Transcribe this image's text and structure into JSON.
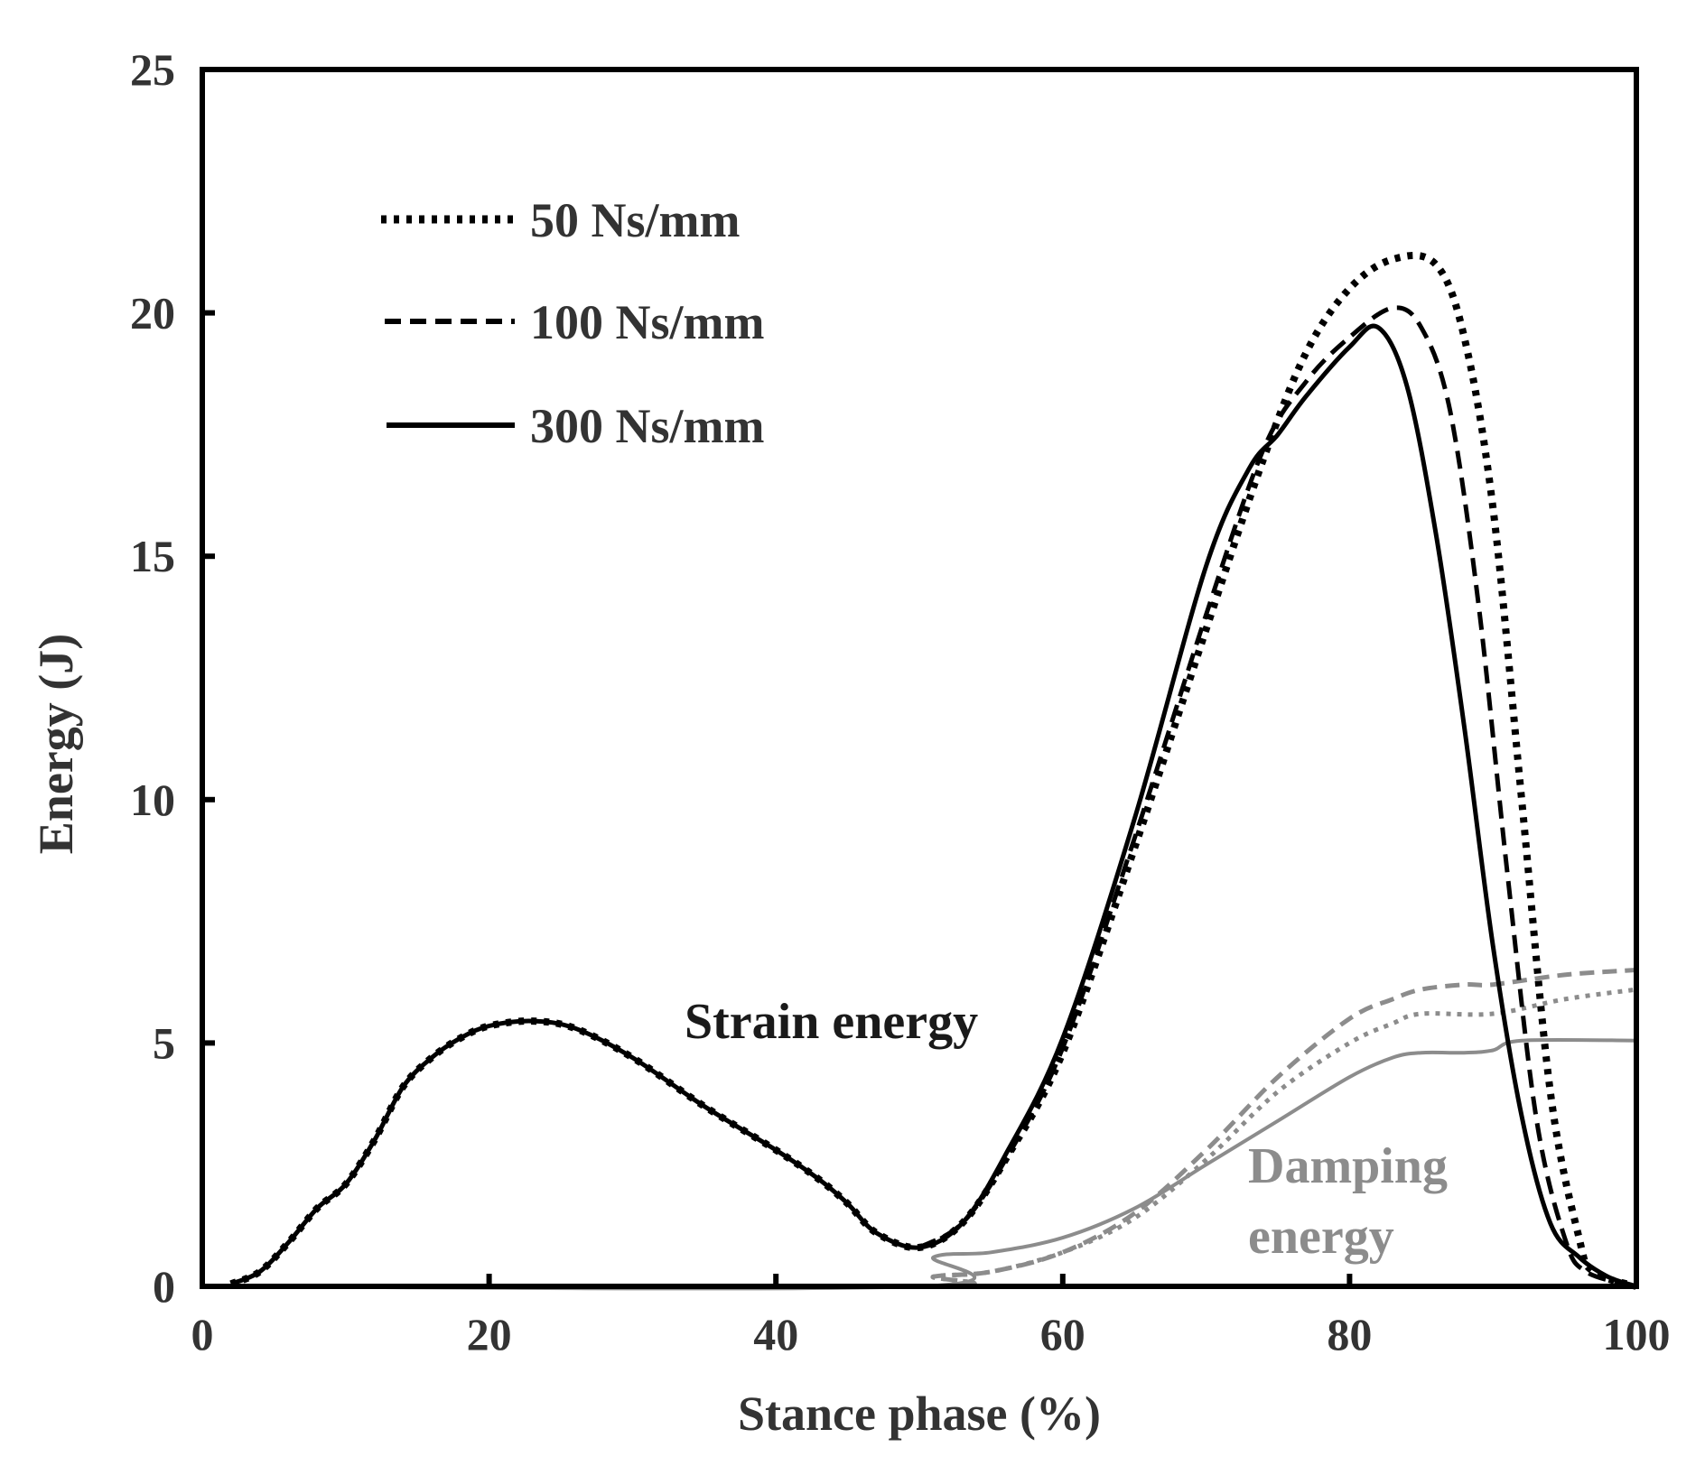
{
  "chart_data": {
    "type": "line",
    "title": "",
    "xlabel": "Stance phase (%)",
    "ylabel": "Energy (J)",
    "xlim": [
      0,
      100
    ],
    "ylim": [
      0,
      25
    ],
    "xticks": [
      0,
      20,
      40,
      60,
      80,
      100
    ],
    "yticks": [
      0,
      5,
      10,
      15,
      20,
      25
    ],
    "grid": false,
    "legend_position": "top-left",
    "legend": [
      {
        "label": "50 Ns/mm",
        "style": "dotted"
      },
      {
        "label": "100 Ns/mm",
        "style": "dashed"
      },
      {
        "label": "300 Ns/mm",
        "style": "solid"
      }
    ],
    "annotations": [
      {
        "text": "Strain energy",
        "color": "#1a1a1a"
      },
      {
        "text": "Damping",
        "color": "#8c8c8c"
      },
      {
        "text": "energy",
        "color": "#8c8c8c"
      }
    ],
    "colors": {
      "strain": "#000000",
      "damping": "#8c8c8c"
    },
    "series": [
      {
        "name": "Strain energy 50 Ns/mm",
        "group": "strain",
        "style": "dotted",
        "x": [
          2,
          4,
          6,
          8,
          10,
          12,
          14,
          16,
          18,
          20,
          23,
          26,
          30,
          35,
          40,
          43,
          45,
          47,
          50,
          53,
          56,
          60,
          65,
          70,
          74,
          77,
          80,
          83,
          86,
          88,
          90,
          92,
          94,
          96,
          97,
          100
        ],
        "y": [
          0.05,
          0.3,
          0.9,
          1.6,
          2.1,
          3.0,
          4.1,
          4.7,
          5.1,
          5.35,
          5.45,
          5.3,
          4.7,
          3.7,
          2.8,
          2.2,
          1.7,
          1.1,
          0.8,
          1.3,
          2.6,
          4.8,
          9.0,
          13.5,
          17.0,
          19.2,
          20.5,
          21.1,
          21.0,
          19.5,
          16.0,
          10.0,
          4.0,
          1.0,
          0.3,
          0.0
        ]
      },
      {
        "name": "Strain energy 100 Ns/mm",
        "group": "strain",
        "style": "dashed",
        "x": [
          50,
          53,
          56,
          60,
          65,
          70,
          74,
          77,
          80,
          83,
          85,
          87,
          89,
          91,
          93,
          95,
          96.5,
          100
        ],
        "y": [
          0.8,
          1.3,
          2.6,
          4.9,
          9.2,
          13.8,
          17.2,
          18.6,
          19.5,
          20.1,
          19.7,
          18.0,
          14.0,
          8.5,
          3.5,
          1.0,
          0.3,
          0.0
        ]
      },
      {
        "name": "Strain energy 300 Ns/mm",
        "group": "strain",
        "style": "solid",
        "x": [
          2,
          4,
          6,
          8,
          10,
          12,
          14,
          16,
          18,
          20,
          23,
          26,
          30,
          35,
          40,
          43,
          45,
          47,
          50,
          53,
          56,
          60,
          65,
          70,
          73,
          75,
          77,
          80,
          82,
          84,
          86,
          88,
          90,
          92,
          94,
          96,
          98,
          100
        ],
        "y": [
          0.05,
          0.3,
          0.9,
          1.6,
          2.1,
          3.0,
          4.1,
          4.7,
          5.1,
          5.35,
          5.45,
          5.3,
          4.7,
          3.7,
          2.8,
          2.2,
          1.7,
          1.1,
          0.8,
          1.3,
          2.7,
          5.1,
          9.6,
          14.8,
          16.8,
          17.5,
          18.3,
          19.3,
          19.7,
          18.5,
          15.5,
          11.5,
          7.0,
          3.5,
          1.3,
          0.6,
          0.2,
          0.0
        ]
      },
      {
        "name": "Damping energy 50 Ns/mm",
        "group": "damping",
        "style": "dotted",
        "x": [
          0,
          50,
          51,
          55,
          60,
          65,
          70,
          75,
          80,
          83,
          85,
          90,
          95,
          100
        ],
        "y": [
          0.0,
          0.0,
          0.2,
          0.3,
          0.7,
          1.4,
          2.6,
          4.0,
          5.0,
          5.4,
          5.6,
          5.6,
          5.9,
          6.1
        ]
      },
      {
        "name": "Damping energy 100 Ns/mm",
        "group": "damping",
        "style": "dashed",
        "x": [
          0,
          50,
          51,
          55,
          60,
          65,
          70,
          75,
          80,
          83,
          85,
          88,
          90,
          95,
          100
        ],
        "y": [
          0.0,
          0.0,
          0.2,
          0.3,
          0.7,
          1.5,
          2.8,
          4.3,
          5.5,
          5.9,
          6.1,
          6.2,
          6.2,
          6.4,
          6.5
        ]
      },
      {
        "name": "Damping energy 300 Ns/mm",
        "group": "damping",
        "style": "solid",
        "x": [
          0,
          50,
          51,
          55,
          60,
          65,
          70,
          75,
          80,
          83,
          85,
          88,
          90,
          92,
          100
        ],
        "y": [
          0.0,
          0.0,
          0.6,
          0.7,
          1.0,
          1.6,
          2.5,
          3.4,
          4.3,
          4.7,
          4.8,
          4.8,
          4.85,
          5.05,
          5.05
        ]
      }
    ]
  }
}
